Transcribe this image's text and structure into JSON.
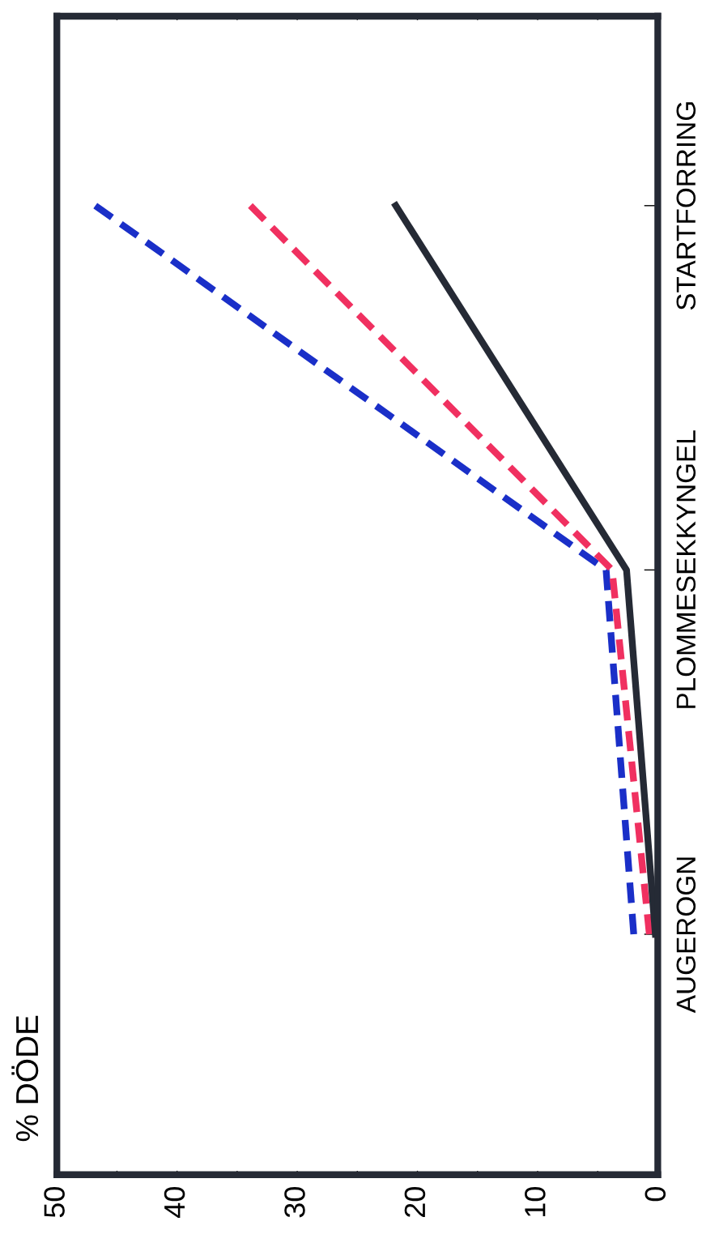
{
  "chart_data": {
    "type": "line",
    "orientation": "horizontal",
    "annotations": [
      "% DÖDE"
    ],
    "categories": [
      "STARTFORRING",
      "PLOMMESEKKYNGEL",
      "AUGEROGN"
    ],
    "series": [
      {
        "color": "#1a2fc8",
        "line_style": "dashed",
        "values": [
          46.8,
          4.3,
          2.0
        ]
      },
      {
        "color": "#f03060",
        "line_style": "dashed",
        "values": [
          33.9,
          3.8,
          0.7
        ]
      },
      {
        "color": "#252a35",
        "line_style": "solid",
        "values": [
          21.8,
          2.6,
          0.2
        ]
      }
    ],
    "xlim": [
      50,
      0
    ],
    "xticks": [
      0,
      {
        "value": 5,
        "label": null
      },
      10,
      {
        "value": 15,
        "label": null
      },
      20,
      {
        "value": 25,
        "label": null
      },
      30,
      {
        "value": 35,
        "label": null
      },
      40,
      {
        "value": 45,
        "label": null
      },
      50
    ],
    "grid": false,
    "legend": false,
    "marker": "none"
  }
}
